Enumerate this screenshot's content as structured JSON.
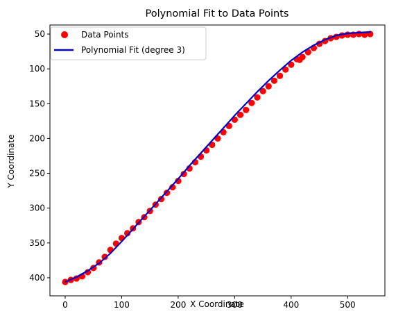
{
  "chart_data": {
    "type": "scatter",
    "title": "Polynomial Fit to Data Points",
    "xlabel": "X Coordinate",
    "ylabel": "Y Coordinate",
    "xlim": [
      -27,
      566
    ],
    "ylim": [
      426,
      37
    ],
    "y_inverted": true,
    "x_ticks": [
      0,
      100,
      200,
      300,
      400,
      500
    ],
    "y_ticks": [
      50,
      100,
      150,
      200,
      250,
      300,
      350,
      400
    ],
    "grid": false,
    "legend_position": "upper-left",
    "series": [
      {
        "name": "Data Points",
        "kind": "scatter",
        "color": "#ff0000",
        "points": [
          [
            0,
            406
          ],
          [
            10,
            403
          ],
          [
            20,
            401
          ],
          [
            30,
            398
          ],
          [
            40,
            392
          ],
          [
            50,
            386
          ],
          [
            60,
            378
          ],
          [
            70,
            370
          ],
          [
            80,
            360
          ],
          [
            90,
            351
          ],
          [
            100,
            343
          ],
          [
            110,
            336
          ],
          [
            120,
            329
          ],
          [
            130,
            320
          ],
          [
            140,
            313
          ],
          [
            150,
            304
          ],
          [
            160,
            295
          ],
          [
            170,
            287
          ],
          [
            180,
            278
          ],
          [
            190,
            270
          ],
          [
            200,
            261
          ],
          [
            210,
            251
          ],
          [
            220,
            243
          ],
          [
            230,
            234
          ],
          [
            240,
            226
          ],
          [
            250,
            217
          ],
          [
            260,
            209
          ],
          [
            270,
            200
          ],
          [
            280,
            191
          ],
          [
            290,
            182
          ],
          [
            300,
            173
          ],
          [
            310,
            166
          ],
          [
            320,
            159
          ],
          [
            330,
            149
          ],
          [
            340,
            141
          ],
          [
            350,
            132
          ],
          [
            360,
            125
          ],
          [
            370,
            117
          ],
          [
            380,
            110
          ],
          [
            390,
            101
          ],
          [
            400,
            94
          ],
          [
            410,
            86
          ],
          [
            415,
            87
          ],
          [
            420,
            83
          ],
          [
            430,
            76
          ],
          [
            440,
            70
          ],
          [
            450,
            64
          ],
          [
            460,
            60
          ],
          [
            470,
            56
          ],
          [
            480,
            54
          ],
          [
            490,
            52
          ],
          [
            500,
            51
          ],
          [
            510,
            51
          ],
          [
            520,
            50
          ],
          [
            530,
            51
          ],
          [
            540,
            50
          ]
        ]
      },
      {
        "name": "Polynomial Fit (degree 3)",
        "kind": "line",
        "color": "#0000cc",
        "points": [
          [
            0,
            406
          ],
          [
            20,
            399
          ],
          [
            40,
            390
          ],
          [
            60,
            379
          ],
          [
            80,
            365
          ],
          [
            100,
            348
          ],
          [
            120,
            330
          ],
          [
            140,
            312
          ],
          [
            160,
            294
          ],
          [
            180,
            276
          ],
          [
            200,
            258
          ],
          [
            220,
            239
          ],
          [
            240,
            221
          ],
          [
            260,
            203
          ],
          [
            280,
            185
          ],
          [
            300,
            167
          ],
          [
            320,
            150
          ],
          [
            340,
            133
          ],
          [
            360,
            117
          ],
          [
            380,
            102
          ],
          [
            400,
            88
          ],
          [
            420,
            76
          ],
          [
            440,
            66
          ],
          [
            460,
            58
          ],
          [
            480,
            52
          ],
          [
            500,
            49
          ],
          [
            520,
            48
          ],
          [
            540,
            47
          ]
        ]
      }
    ]
  }
}
